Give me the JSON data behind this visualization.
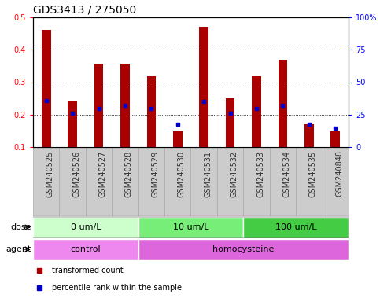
{
  "title": "GDS3413 / 275050",
  "samples": [
    "GSM240525",
    "GSM240526",
    "GSM240527",
    "GSM240528",
    "GSM240529",
    "GSM240530",
    "GSM240531",
    "GSM240532",
    "GSM240533",
    "GSM240534",
    "GSM240535",
    "GSM240848"
  ],
  "transformed_count": [
    0.462,
    0.242,
    0.358,
    0.358,
    0.318,
    0.148,
    0.47,
    0.25,
    0.318,
    0.37,
    0.17,
    0.148
  ],
  "percentile_rank": [
    0.242,
    0.205,
    0.22,
    0.228,
    0.22,
    0.17,
    0.24,
    0.205,
    0.22,
    0.228,
    0.17,
    0.158
  ],
  "bar_bottom": 0.1,
  "ylim": [
    0.1,
    0.5
  ],
  "yticks": [
    0.1,
    0.2,
    0.3,
    0.4,
    0.5
  ],
  "ytick_labels": [
    "0.1",
    "0.2",
    "0.3",
    "0.4",
    "0.5"
  ],
  "right_ytick_labels": [
    "0",
    "25",
    "50",
    "75",
    "100%"
  ],
  "bar_color": "#aa0000",
  "percentile_color": "#0000cc",
  "dose_groups": [
    {
      "label": "0 um/L",
      "start": 0,
      "end": 4,
      "color": "#ccffcc"
    },
    {
      "label": "10 um/L",
      "start": 4,
      "end": 8,
      "color": "#77ee77"
    },
    {
      "label": "100 um/L",
      "start": 8,
      "end": 12,
      "color": "#44cc44"
    }
  ],
  "agent_groups": [
    {
      "label": "control",
      "start": 0,
      "end": 4,
      "color": "#ee88ee"
    },
    {
      "label": "homocysteine",
      "start": 4,
      "end": 12,
      "color": "#dd66dd"
    }
  ],
  "dose_label": "dose",
  "agent_label": "agent",
  "legend_items": [
    {
      "label": "transformed count",
      "color": "#aa0000"
    },
    {
      "label": "percentile rank within the sample",
      "color": "#0000cc"
    }
  ],
  "title_fontsize": 10,
  "tick_fontsize": 7,
  "label_fontsize": 8,
  "xtick_bg_color": "#cccccc",
  "xtick_edge_color": "#aaaaaa",
  "bar_width": 0.35
}
